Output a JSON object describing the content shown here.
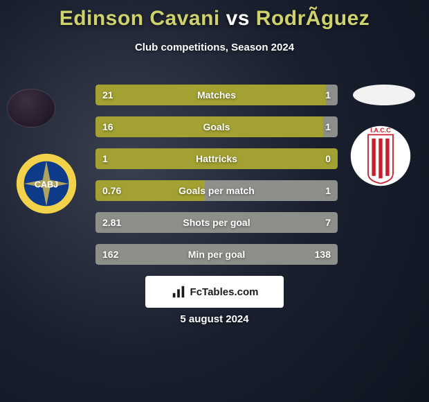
{
  "title_text": "Edinson Cavani vs RodrÃ­guez",
  "title_colors": {
    "player1": "#cfd26a",
    "vs": "#ffffff",
    "player2": "#cfd26a"
  },
  "subtitle": "Club competitions, Season 2024",
  "brand_text": "FcTables.com",
  "date": "5 august 2024",
  "bar_color_olive": "#a2a132",
  "bar_color_gray": "#8d8f8b",
  "crest_left": {
    "ring_color": "#f2d24a",
    "center_color": "#0e3a8a",
    "letters": "CABJ",
    "letters_color": "#ffffff"
  },
  "crest_right": {
    "bg_color": "#ffffff",
    "stripe_color": "#c81e2b",
    "letters": "I.A.C.C",
    "letters_color": "#c81e2b"
  },
  "stats": [
    {
      "label": "Matches",
      "left_val": "21",
      "right_val": "1",
      "left_pct": 95,
      "right_pct": 5,
      "style": "split"
    },
    {
      "label": "Goals",
      "left_val": "16",
      "right_val": "1",
      "left_pct": 94,
      "right_pct": 6,
      "style": "split"
    },
    {
      "label": "Hattricks",
      "left_val": "1",
      "right_val": "0",
      "left_pct": 100,
      "right_pct": 0,
      "style": "full-olive"
    },
    {
      "label": "Goals per match",
      "left_val": "0.76",
      "right_val": "1",
      "left_pct": 45,
      "right_pct": 55,
      "style": "split"
    },
    {
      "label": "Shots per goal",
      "left_val": "2.81",
      "right_val": "7",
      "left_pct": 72,
      "right_pct": 28,
      "style": "full-gray"
    },
    {
      "label": "Min per goal",
      "left_val": "162",
      "right_val": "138",
      "left_pct": 46,
      "right_pct": 54,
      "style": "full-gray"
    }
  ]
}
